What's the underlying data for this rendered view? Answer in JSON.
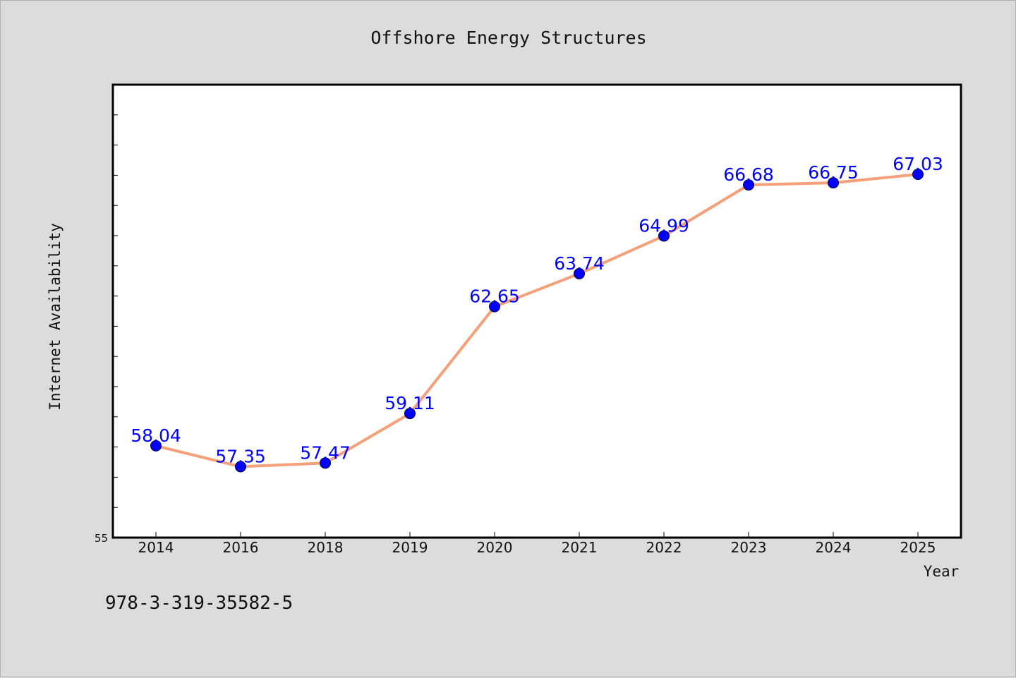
{
  "chart_data": {
    "type": "line",
    "title": "Offshore Energy Structures",
    "xlabel": "Year",
    "ylabel": "Internet Availability",
    "categories": [
      "2014",
      "2016",
      "2018",
      "2019",
      "2020",
      "2021",
      "2022",
      "2023",
      "2024",
      "2025"
    ],
    "series": [
      {
        "values": [
          58.04,
          57.35,
          57.47,
          59.11,
          62.65,
          63.74,
          64.99,
          66.68,
          66.75,
          67.03
        ]
      }
    ],
    "data_labels": [
      "58.04",
      "57.35",
      "57.47",
      "59.11",
      "62.65",
      "63.74",
      "64.99",
      "66.68",
      "66.75",
      "67.03"
    ],
    "ylim": [
      55,
      70
    ],
    "yticks_labeled": [
      "55"
    ],
    "y_minor_step": 1,
    "grid": false,
    "line_color": "#f4a07a",
    "marker_color": "#0000ff",
    "label_color": "#0000ff"
  },
  "footnote": "978-3-319-35582-5"
}
